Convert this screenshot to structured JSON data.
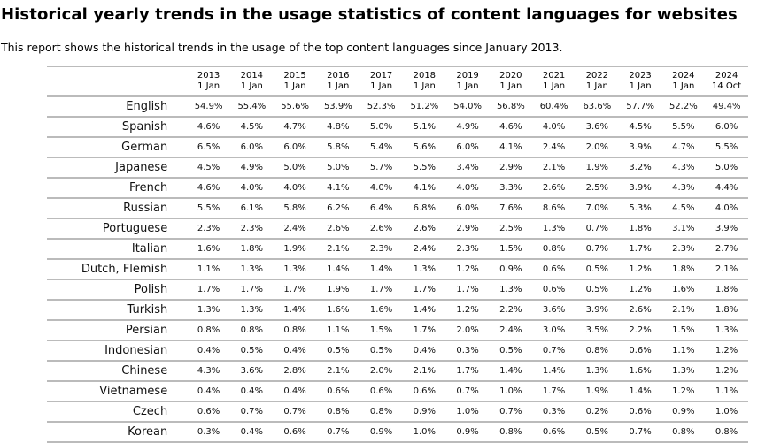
{
  "title": "Historical yearly trends in the usage statistics of content languages for websites",
  "subtitle": "This report shows the historical trends in the usage of the top content languages since January 2013.",
  "columns": [
    {
      "year": "2013",
      "date": "1 Jan"
    },
    {
      "year": "2014",
      "date": "1 Jan"
    },
    {
      "year": "2015",
      "date": "1 Jan"
    },
    {
      "year": "2016",
      "date": "1 Jan"
    },
    {
      "year": "2017",
      "date": "1 Jan"
    },
    {
      "year": "2018",
      "date": "1 Jan"
    },
    {
      "year": "2019",
      "date": "1 Jan"
    },
    {
      "year": "2020",
      "date": "1 Jan"
    },
    {
      "year": "2021",
      "date": "1 Jan"
    },
    {
      "year": "2022",
      "date": "1 Jan"
    },
    {
      "year": "2023",
      "date": "1 Jan"
    },
    {
      "year": "2024",
      "date": "1 Jan"
    },
    {
      "year": "2024",
      "date": "14 Oct"
    }
  ],
  "rows": [
    {
      "language": "English",
      "values": [
        "54.9%",
        "55.4%",
        "55.6%",
        "53.9%",
        "52.3%",
        "51.2%",
        "54.0%",
        "56.8%",
        "60.4%",
        "63.6%",
        "57.7%",
        "52.2%",
        "49.4%"
      ]
    },
    {
      "language": "Spanish",
      "values": [
        "4.6%",
        "4.5%",
        "4.7%",
        "4.8%",
        "5.0%",
        "5.1%",
        "4.9%",
        "4.6%",
        "4.0%",
        "3.6%",
        "4.5%",
        "5.5%",
        "6.0%"
      ]
    },
    {
      "language": "German",
      "values": [
        "6.5%",
        "6.0%",
        "6.0%",
        "5.8%",
        "5.4%",
        "5.6%",
        "6.0%",
        "4.1%",
        "2.4%",
        "2.0%",
        "3.9%",
        "4.7%",
        "5.5%"
      ]
    },
    {
      "language": "Japanese",
      "values": [
        "4.5%",
        "4.9%",
        "5.0%",
        "5.0%",
        "5.7%",
        "5.5%",
        "3.4%",
        "2.9%",
        "2.1%",
        "1.9%",
        "3.2%",
        "4.3%",
        "5.0%"
      ]
    },
    {
      "language": "French",
      "values": [
        "4.6%",
        "4.0%",
        "4.0%",
        "4.1%",
        "4.0%",
        "4.1%",
        "4.0%",
        "3.3%",
        "2.6%",
        "2.5%",
        "3.9%",
        "4.3%",
        "4.4%"
      ]
    },
    {
      "language": "Russian",
      "values": [
        "5.5%",
        "6.1%",
        "5.8%",
        "6.2%",
        "6.4%",
        "6.8%",
        "6.0%",
        "7.6%",
        "8.6%",
        "7.0%",
        "5.3%",
        "4.5%",
        "4.0%"
      ]
    },
    {
      "language": "Portuguese",
      "values": [
        "2.3%",
        "2.3%",
        "2.4%",
        "2.6%",
        "2.6%",
        "2.6%",
        "2.9%",
        "2.5%",
        "1.3%",
        "0.7%",
        "1.8%",
        "3.1%",
        "3.9%"
      ]
    },
    {
      "language": "Italian",
      "values": [
        "1.6%",
        "1.8%",
        "1.9%",
        "2.1%",
        "2.3%",
        "2.4%",
        "2.3%",
        "1.5%",
        "0.8%",
        "0.7%",
        "1.7%",
        "2.3%",
        "2.7%"
      ]
    },
    {
      "language": "Dutch, Flemish",
      "values": [
        "1.1%",
        "1.3%",
        "1.3%",
        "1.4%",
        "1.4%",
        "1.3%",
        "1.2%",
        "0.9%",
        "0.6%",
        "0.5%",
        "1.2%",
        "1.8%",
        "2.1%"
      ]
    },
    {
      "language": "Polish",
      "values": [
        "1.7%",
        "1.7%",
        "1.7%",
        "1.9%",
        "1.7%",
        "1.7%",
        "1.7%",
        "1.3%",
        "0.6%",
        "0.5%",
        "1.2%",
        "1.6%",
        "1.8%"
      ]
    },
    {
      "language": "Turkish",
      "values": [
        "1.3%",
        "1.3%",
        "1.4%",
        "1.6%",
        "1.6%",
        "1.4%",
        "1.2%",
        "2.2%",
        "3.6%",
        "3.9%",
        "2.6%",
        "2.1%",
        "1.8%"
      ]
    },
    {
      "language": "Persian",
      "values": [
        "0.8%",
        "0.8%",
        "0.8%",
        "1.1%",
        "1.5%",
        "1.7%",
        "2.0%",
        "2.4%",
        "3.0%",
        "3.5%",
        "2.2%",
        "1.5%",
        "1.3%"
      ]
    },
    {
      "language": "Indonesian",
      "values": [
        "0.4%",
        "0.5%",
        "0.4%",
        "0.5%",
        "0.5%",
        "0.4%",
        "0.3%",
        "0.5%",
        "0.7%",
        "0.8%",
        "0.6%",
        "1.1%",
        "1.2%"
      ]
    },
    {
      "language": "Chinese",
      "values": [
        "4.3%",
        "3.6%",
        "2.8%",
        "2.1%",
        "2.0%",
        "2.1%",
        "1.7%",
        "1.4%",
        "1.4%",
        "1.3%",
        "1.6%",
        "1.3%",
        "1.2%"
      ]
    },
    {
      "language": "Vietnamese",
      "values": [
        "0.4%",
        "0.4%",
        "0.4%",
        "0.6%",
        "0.6%",
        "0.6%",
        "0.7%",
        "1.0%",
        "1.7%",
        "1.9%",
        "1.4%",
        "1.2%",
        "1.1%"
      ]
    },
    {
      "language": "Czech",
      "values": [
        "0.6%",
        "0.7%",
        "0.7%",
        "0.8%",
        "0.8%",
        "0.9%",
        "1.0%",
        "0.7%",
        "0.3%",
        "0.2%",
        "0.6%",
        "0.9%",
        "1.0%"
      ]
    },
    {
      "language": "Korean",
      "values": [
        "0.3%",
        "0.4%",
        "0.6%",
        "0.7%",
        "0.9%",
        "1.0%",
        "0.9%",
        "0.8%",
        "0.6%",
        "0.5%",
        "0.7%",
        "0.8%",
        "0.8%"
      ]
    }
  ]
}
